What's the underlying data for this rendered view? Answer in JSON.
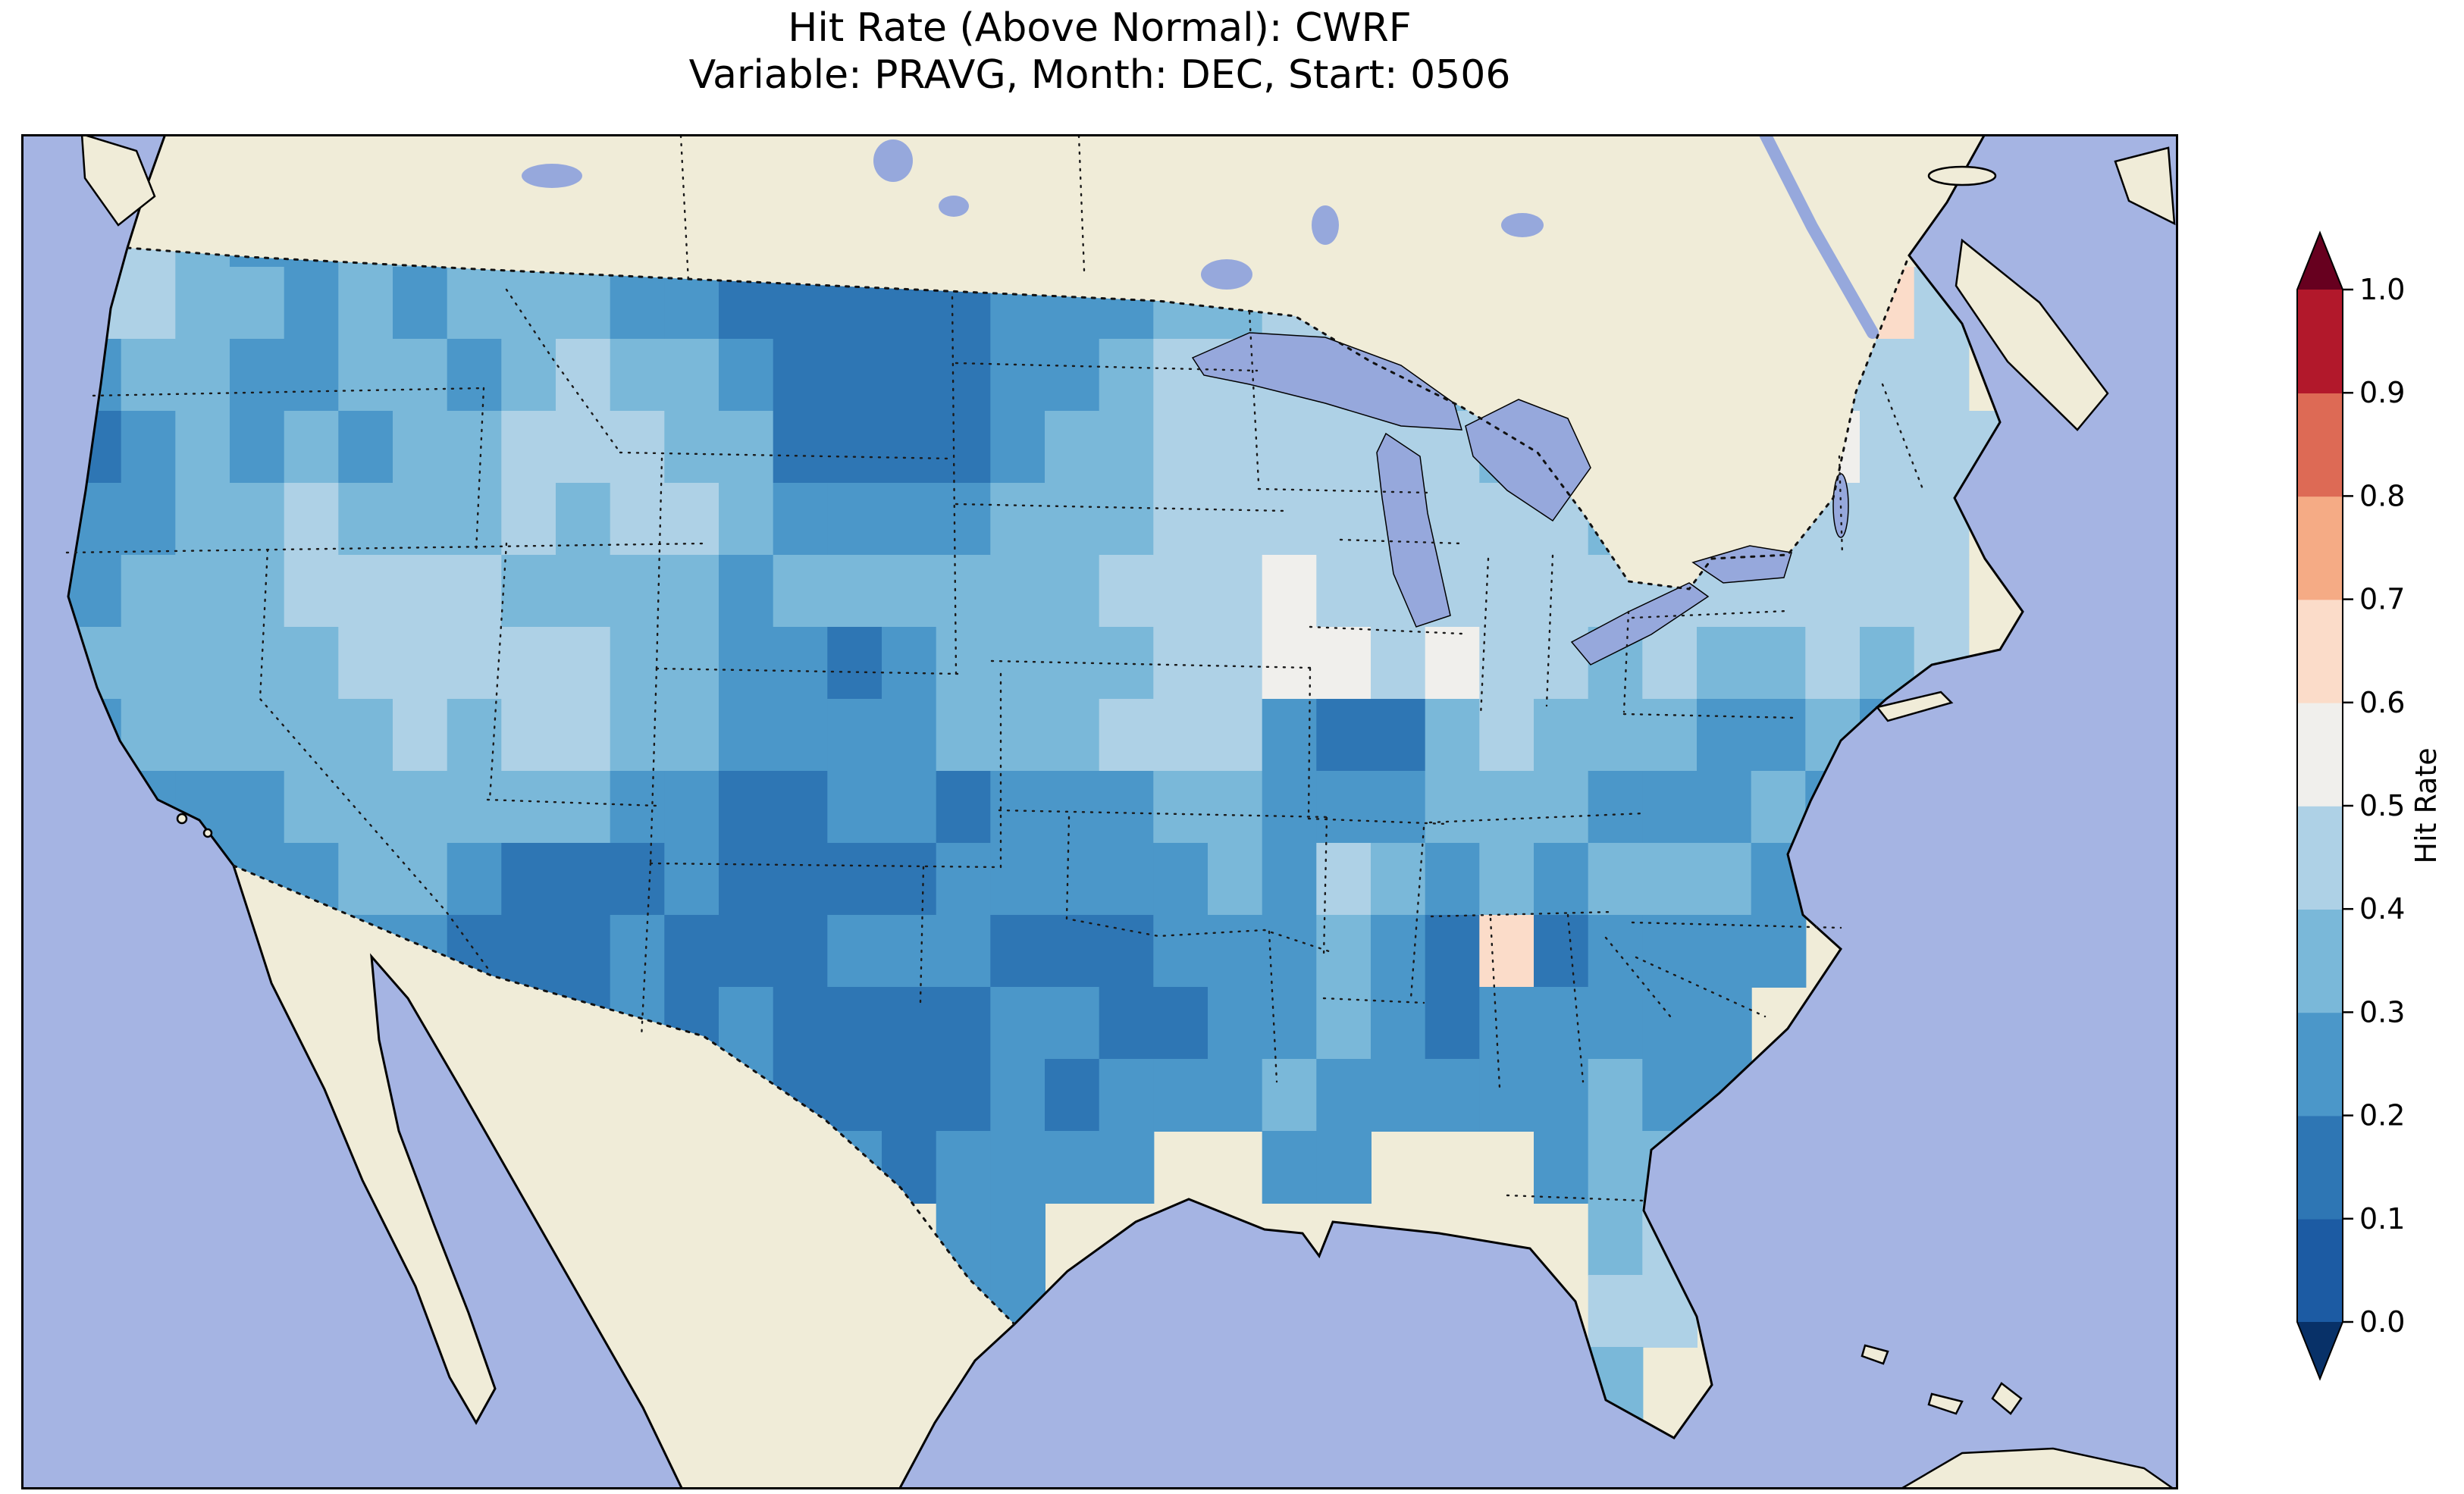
{
  "title": "Hit Rate (Above Normal): CWRF",
  "subtitle": "Variable: PRAVG, Month: DEC, Start: 0506",
  "colorbar": {
    "label": "Hit Rate",
    "ticks": [
      "0.0",
      "0.1",
      "0.2",
      "0.3",
      "0.4",
      "0.5",
      "0.6",
      "0.7",
      "0.8",
      "0.9",
      "1.0"
    ],
    "bin_colors": [
      "#1c5ba3",
      "#2e76b4",
      "#4b97c9",
      "#7ab8d9",
      "#aed1e6",
      "#f0efec",
      "#fbdcc9",
      "#f5ab85",
      "#dd6a55",
      "#b2182b"
    ],
    "under_color": "#083168",
    "over_color": "#67001f"
  },
  "map_colors": {
    "ocean": "#a5b4e3",
    "land": "#f0ecd8",
    "lake": "#96a8dc",
    "coastline": "#000000"
  },
  "chart_data": {
    "type": "heatmap",
    "title": "Hit Rate (Above Normal): CWRF",
    "subtitle": "Variable: PRAVG, Month: DEC, Start: 0506",
    "region": "Contiguous United States, approx. lon -126 to -65, lat 23.5 to 50.5",
    "colorbar_label": "Hit Rate",
    "colormap": "RdBu_r, 10 discrete bins from 0.0 to 1.0 with extend arrows both ends",
    "bin_edges": [
      0.0,
      0.1,
      0.2,
      0.3,
      0.4,
      0.5,
      0.6,
      0.7,
      0.8,
      0.9,
      1.0
    ],
    "cell_bin_values": {
      "1": 0.15,
      "2": 0.25,
      "3": 0.35,
      "4": 0.45,
      "5": 0.55,
      "6": 0.65
    },
    "palette": {
      "1": "#2e76b4",
      "2": "#4b97c9",
      "3": "#7ab8d9",
      "4": "#aed1e6",
      "5": "#f0efec",
      "6": "#fbdcc9"
    },
    "values_estimated_from_colors": true,
    "grid_rows": [
      "343 223 332 222 211 122 233 344 333 .33 ... ...",
      "443 323 233 322 111 112 223 344 333 333 ..4 64.",
      "233 223 323 433 211 112 234 444 434 333 ..4 44.",
      "123 232 334 443 311 112 334 444 443 333 445 444",
      "223 343 334 344 322 223 334 444 444 434 444 44.",
      "233 344 443 333 233 333 344 454 444 444 444 44.",
      "333 334 444 433 221 233 334 455 454 434 334 34.",
      "233 333 434 433 222 233 344 421 134 333 223 2..",
      "122 233 333 322 112 212 223 322 233 322 232 2..",
      "112 223 321 112 111 122 222 324 323 233 322 ...",
      ".11 122 211 121 112 221 112 223 216 122 22. ...",
      "... ..2 221 121 211 112 211 223 212 222 2.. ...",
      "... ... ... ..2 211 112 122 232 222 232 2.. ...",
      "... ... ... ... .12 122 22. .22 ... 233 4.. ...",
      "... ... ... ... ... .22 ... ... ... .34 4.. ...",
      "... ... ... ... ... .22 ... ... ... .44 ... ...",
      "... ... ... ... ... ... ... ... ... .3. ... ..."
    ]
  }
}
